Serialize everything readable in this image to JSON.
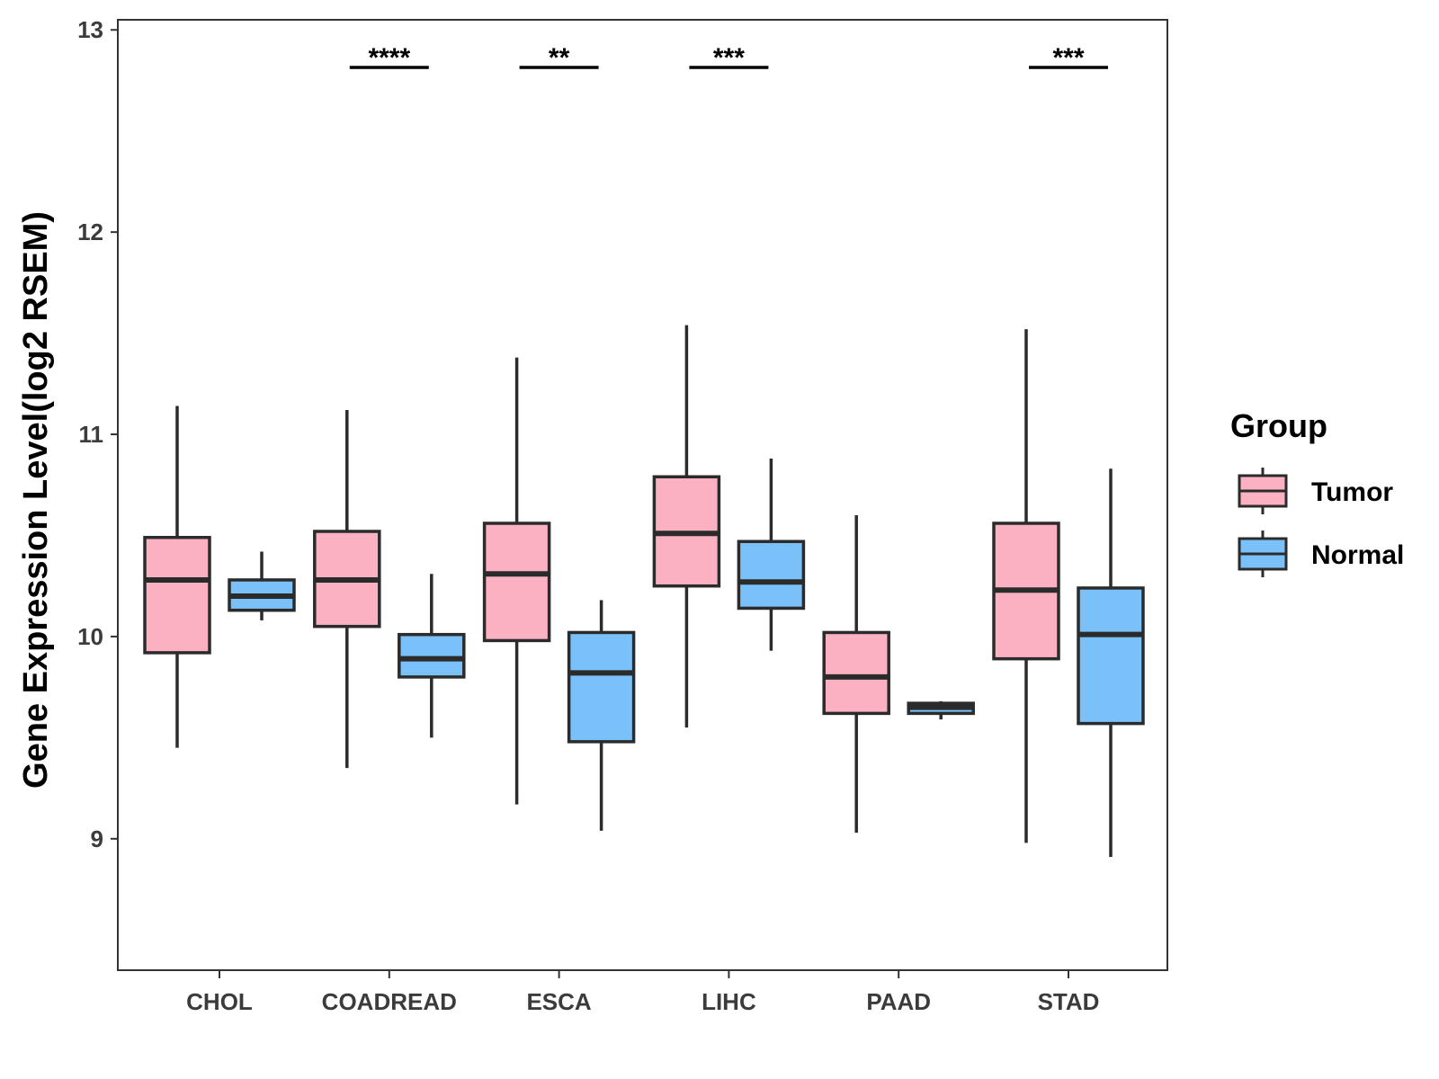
{
  "chart_data": {
    "type": "boxplot",
    "title": "",
    "xlabel": "",
    "ylabel": "Gene Expression Level(log2 RSEM)",
    "ylim": [
      8.35,
      13.05
    ],
    "yticks": [
      9,
      10,
      11,
      12,
      13
    ],
    "categories": [
      "CHOL",
      "COADREAD",
      "ESCA",
      "LIHC",
      "PAAD",
      "STAD"
    ],
    "legend": {
      "title": "Group",
      "position": "right"
    },
    "series": [
      {
        "name": "Tumor",
        "color": "#fbb1c2",
        "boxes": [
          {
            "min": 9.45,
            "q1": 9.92,
            "median": 10.28,
            "q3": 10.49,
            "max": 11.14
          },
          {
            "min": 9.35,
            "q1": 10.05,
            "median": 10.28,
            "q3": 10.52,
            "max": 11.12
          },
          {
            "min": 9.17,
            "q1": 9.98,
            "median": 10.31,
            "q3": 10.56,
            "max": 11.38
          },
          {
            "min": 9.55,
            "q1": 10.25,
            "median": 10.51,
            "q3": 10.79,
            "max": 11.54
          },
          {
            "min": 9.03,
            "q1": 9.62,
            "median": 9.8,
            "q3": 10.02,
            "max": 10.6
          },
          {
            "min": 8.98,
            "q1": 9.89,
            "median": 10.23,
            "q3": 10.56,
            "max": 11.52
          }
        ]
      },
      {
        "name": "Normal",
        "color": "#79c1f8",
        "boxes": [
          {
            "min": 10.08,
            "q1": 10.13,
            "median": 10.2,
            "q3": 10.28,
            "max": 10.42
          },
          {
            "min": 9.5,
            "q1": 9.8,
            "median": 9.89,
            "q3": 10.01,
            "max": 10.31
          },
          {
            "min": 9.04,
            "q1": 9.48,
            "median": 9.82,
            "q3": 10.02,
            "max": 10.18
          },
          {
            "min": 9.93,
            "q1": 10.14,
            "median": 10.27,
            "q3": 10.47,
            "max": 10.88
          },
          {
            "min": 9.59,
            "q1": 9.62,
            "median": 9.65,
            "q3": 9.67,
            "max": 9.68
          },
          {
            "min": 8.91,
            "q1": 9.57,
            "median": 10.01,
            "q3": 10.24,
            "max": 10.83
          }
        ]
      }
    ],
    "significance": [
      {
        "category": "COADREAD",
        "label": "****"
      },
      {
        "category": "ESCA",
        "label": "**"
      },
      {
        "category": "LIHC",
        "label": "***"
      },
      {
        "category": "STAD",
        "label": "***"
      }
    ]
  }
}
